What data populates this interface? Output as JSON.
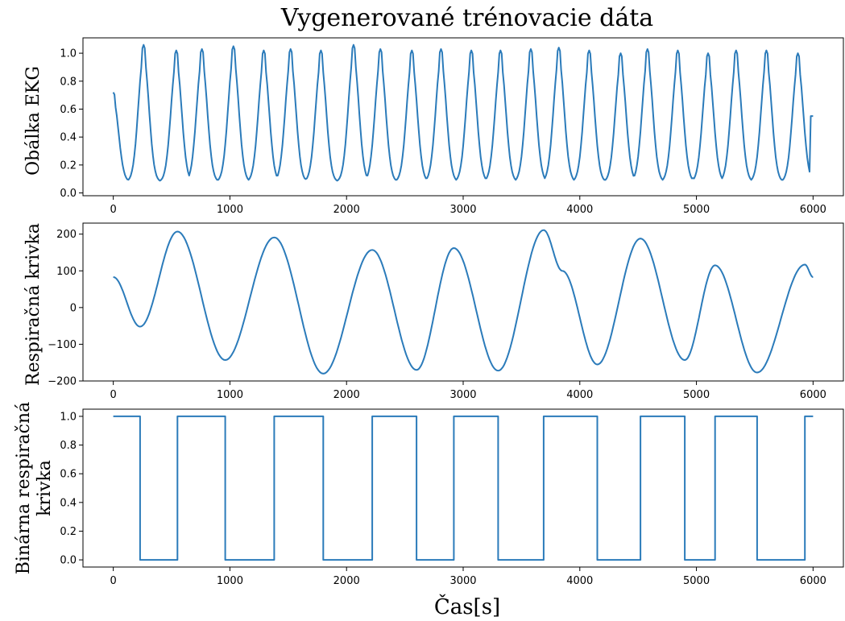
{
  "figure": {
    "title": "Vygenerované trénovacie dáta",
    "xlabel": "Čas[s]",
    "line_color": "#2b7bba"
  },
  "chart_data": [
    {
      "type": "line",
      "ylabel": "Obálka EKG",
      "xlim": [
        -260,
        6260
      ],
      "ylim": [
        -0.02,
        1.11
      ],
      "xticks": [
        0,
        1000,
        2000,
        3000,
        4000,
        5000,
        6000
      ],
      "xtick_labels": [
        "0",
        "1000",
        "2000",
        "3000",
        "4000",
        "5000",
        "6000"
      ],
      "yticks": [
        0.0,
        0.2,
        0.4,
        0.6,
        0.8,
        1.0
      ],
      "ytick_labels": [
        "0.0",
        "0.2",
        "0.4",
        "0.6",
        "0.8",
        "1.0"
      ],
      "series": [
        {
          "kind": "pulses",
          "start_value": 0.6,
          "end_value": 0.55,
          "baseline": 0.08,
          "peaks": [
            [
              0,
              0.72
            ],
            [
              260,
              1.06
            ],
            [
              540,
              1.02
            ],
            [
              760,
              1.03
            ],
            [
              1030,
              1.05
            ],
            [
              1290,
              1.02
            ],
            [
              1520,
              1.03
            ],
            [
              1780,
              1.02
            ],
            [
              2060,
              1.06
            ],
            [
              2290,
              1.03
            ],
            [
              2560,
              1.02
            ],
            [
              2810,
              1.03
            ],
            [
              3070,
              1.02
            ],
            [
              3320,
              1.02
            ],
            [
              3580,
              1.03
            ],
            [
              3820,
              1.04
            ],
            [
              4080,
              1.02
            ],
            [
              4350,
              1.0
            ],
            [
              4580,
              1.03
            ],
            [
              4840,
              1.02
            ],
            [
              5100,
              1.0
            ],
            [
              5340,
              1.02
            ],
            [
              5600,
              1.02
            ],
            [
              5870,
              1.0
            ]
          ]
        }
      ]
    },
    {
      "type": "line",
      "ylabel": "Respiračná krivka",
      "xlim": [
        -260,
        6260
      ],
      "ylim": [
        -200,
        230
      ],
      "xticks": [
        0,
        1000,
        2000,
        3000,
        4000,
        5000,
        6000
      ],
      "xtick_labels": [
        "0",
        "1000",
        "2000",
        "3000",
        "4000",
        "5000",
        "6000"
      ],
      "yticks": [
        -200,
        -100,
        0,
        100,
        200
      ],
      "ytick_labels": [
        "−200",
        "−100",
        "0",
        "100",
        "200"
      ],
      "series": [
        {
          "kind": "smooth",
          "points": [
            [
              0,
              83
            ],
            [
              230,
              -52
            ],
            [
              550,
              207
            ],
            [
              960,
              -143
            ],
            [
              1380,
              191
            ],
            [
              1800,
              -180
            ],
            [
              2220,
              157
            ],
            [
              2600,
              -170
            ],
            [
              2920,
              162
            ],
            [
              3300,
              -172
            ],
            [
              3690,
              211
            ],
            [
              3850,
              100
            ],
            [
              4150,
              -155
            ],
            [
              4520,
              188
            ],
            [
              4900,
              -143
            ],
            [
              5160,
              115
            ],
            [
              5520,
              -177
            ],
            [
              5930,
              117
            ],
            [
              6000,
              83
            ]
          ]
        }
      ]
    },
    {
      "type": "line",
      "ylabel": "Binárna respiračná krivka",
      "xlim": [
        -260,
        6260
      ],
      "ylim": [
        -0.05,
        1.05
      ],
      "xticks": [
        0,
        1000,
        2000,
        3000,
        4000,
        5000,
        6000
      ],
      "xtick_labels": [
        "0",
        "1000",
        "2000",
        "3000",
        "4000",
        "5000",
        "6000"
      ],
      "yticks": [
        0.0,
        0.2,
        0.4,
        0.6,
        0.8,
        1.0
      ],
      "ytick_labels": [
        "0.0",
        "0.2",
        "0.4",
        "0.6",
        "0.8",
        "1.0"
      ],
      "series": [
        {
          "kind": "step",
          "points": [
            [
              0,
              1
            ],
            [
              230,
              0
            ],
            [
              550,
              1
            ],
            [
              960,
              0
            ],
            [
              1380,
              1
            ],
            [
              1800,
              0
            ],
            [
              2220,
              1
            ],
            [
              2600,
              0
            ],
            [
              2920,
              1
            ],
            [
              3300,
              0
            ],
            [
              3690,
              1
            ],
            [
              4150,
              0
            ],
            [
              4520,
              1
            ],
            [
              4900,
              0
            ],
            [
              5160,
              1
            ],
            [
              5520,
              0
            ],
            [
              5930,
              1
            ],
            [
              6000,
              1
            ]
          ]
        }
      ]
    }
  ]
}
